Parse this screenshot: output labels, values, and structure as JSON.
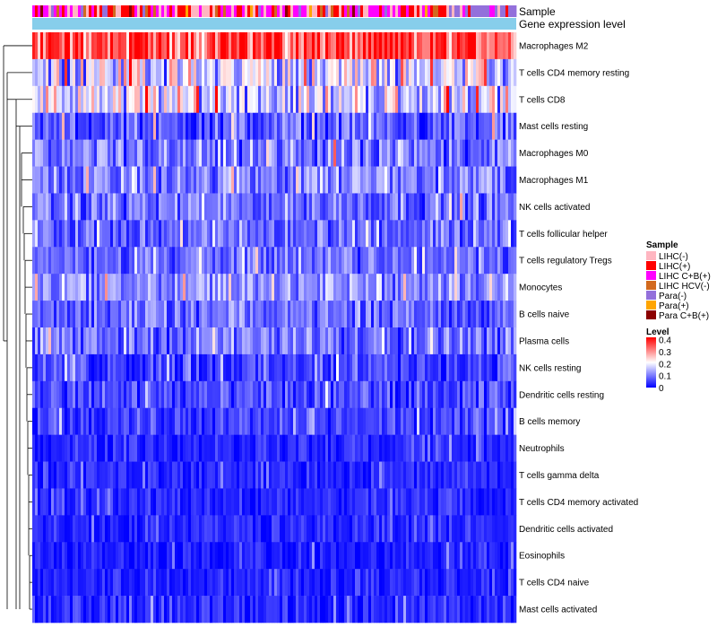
{
  "chart_data": {
    "type": "heatmap",
    "title": "",
    "annotation_tracks": [
      "Sample",
      "Gene expression level"
    ],
    "rows": [
      "Macrophages M2",
      "T cells CD4 memory resting",
      "T cells CD8",
      "Mast cells resting",
      "Macrophages M0",
      "Macrophages M1",
      "NK cells activated",
      "T cells follicular helper",
      "T cells regulatory  Tregs",
      "Monocytes",
      "B cells naive",
      "Plasma cells",
      "NK cells resting",
      "Dendritic cells resting",
      "B cells memory",
      "Neutrophils",
      "T cells gamma delta",
      "T cells CD4 memory activated",
      "Dendritic cells activated",
      "Eosinophils",
      "T cells CD4 naive",
      "Mast cells activated"
    ],
    "row_mean_level": [
      0.34,
      0.17,
      0.17,
      0.07,
      0.09,
      0.1,
      0.09,
      0.08,
      0.08,
      0.11,
      0.08,
      0.09,
      0.05,
      0.05,
      0.05,
      0.03,
      0.03,
      0.03,
      0.03,
      0.02,
      0.03,
      0.03
    ],
    "row_spread": [
      0.1,
      0.1,
      0.1,
      0.06,
      0.07,
      0.06,
      0.06,
      0.05,
      0.05,
      0.06,
      0.05,
      0.06,
      0.05,
      0.05,
      0.04,
      0.03,
      0.03,
      0.03,
      0.03,
      0.03,
      0.03,
      0.04
    ],
    "n_samples": 180,
    "sample_groups": [
      {
        "name": "LIHC(-)",
        "color": "#FFB6C1"
      },
      {
        "name": "LIHC(+)",
        "color": "#FF0000"
      },
      {
        "name": "LIHC C+B(+)",
        "color": "#FF00FF"
      },
      {
        "name": "LIHC HCV(-)",
        "color": "#D2691E"
      },
      {
        "name": "Para(-)",
        "color": "#9370DB"
      },
      {
        "name": "Para(+)",
        "color": "#FFA500"
      },
      {
        "name": "Para C+B(+)",
        "color": "#8B0000"
      }
    ],
    "gene_expression_color": "#87CEEB",
    "color_scale": {
      "title": "Level",
      "min": 0,
      "max": 0.4,
      "ticks": [
        "0.4",
        "0.3",
        "0.2",
        "0.1",
        "0"
      ],
      "colors": [
        "#0000FF",
        "#FFFFFF",
        "#FF0000"
      ]
    },
    "legend_position": "right",
    "legend_sample_title": "Sample"
  }
}
